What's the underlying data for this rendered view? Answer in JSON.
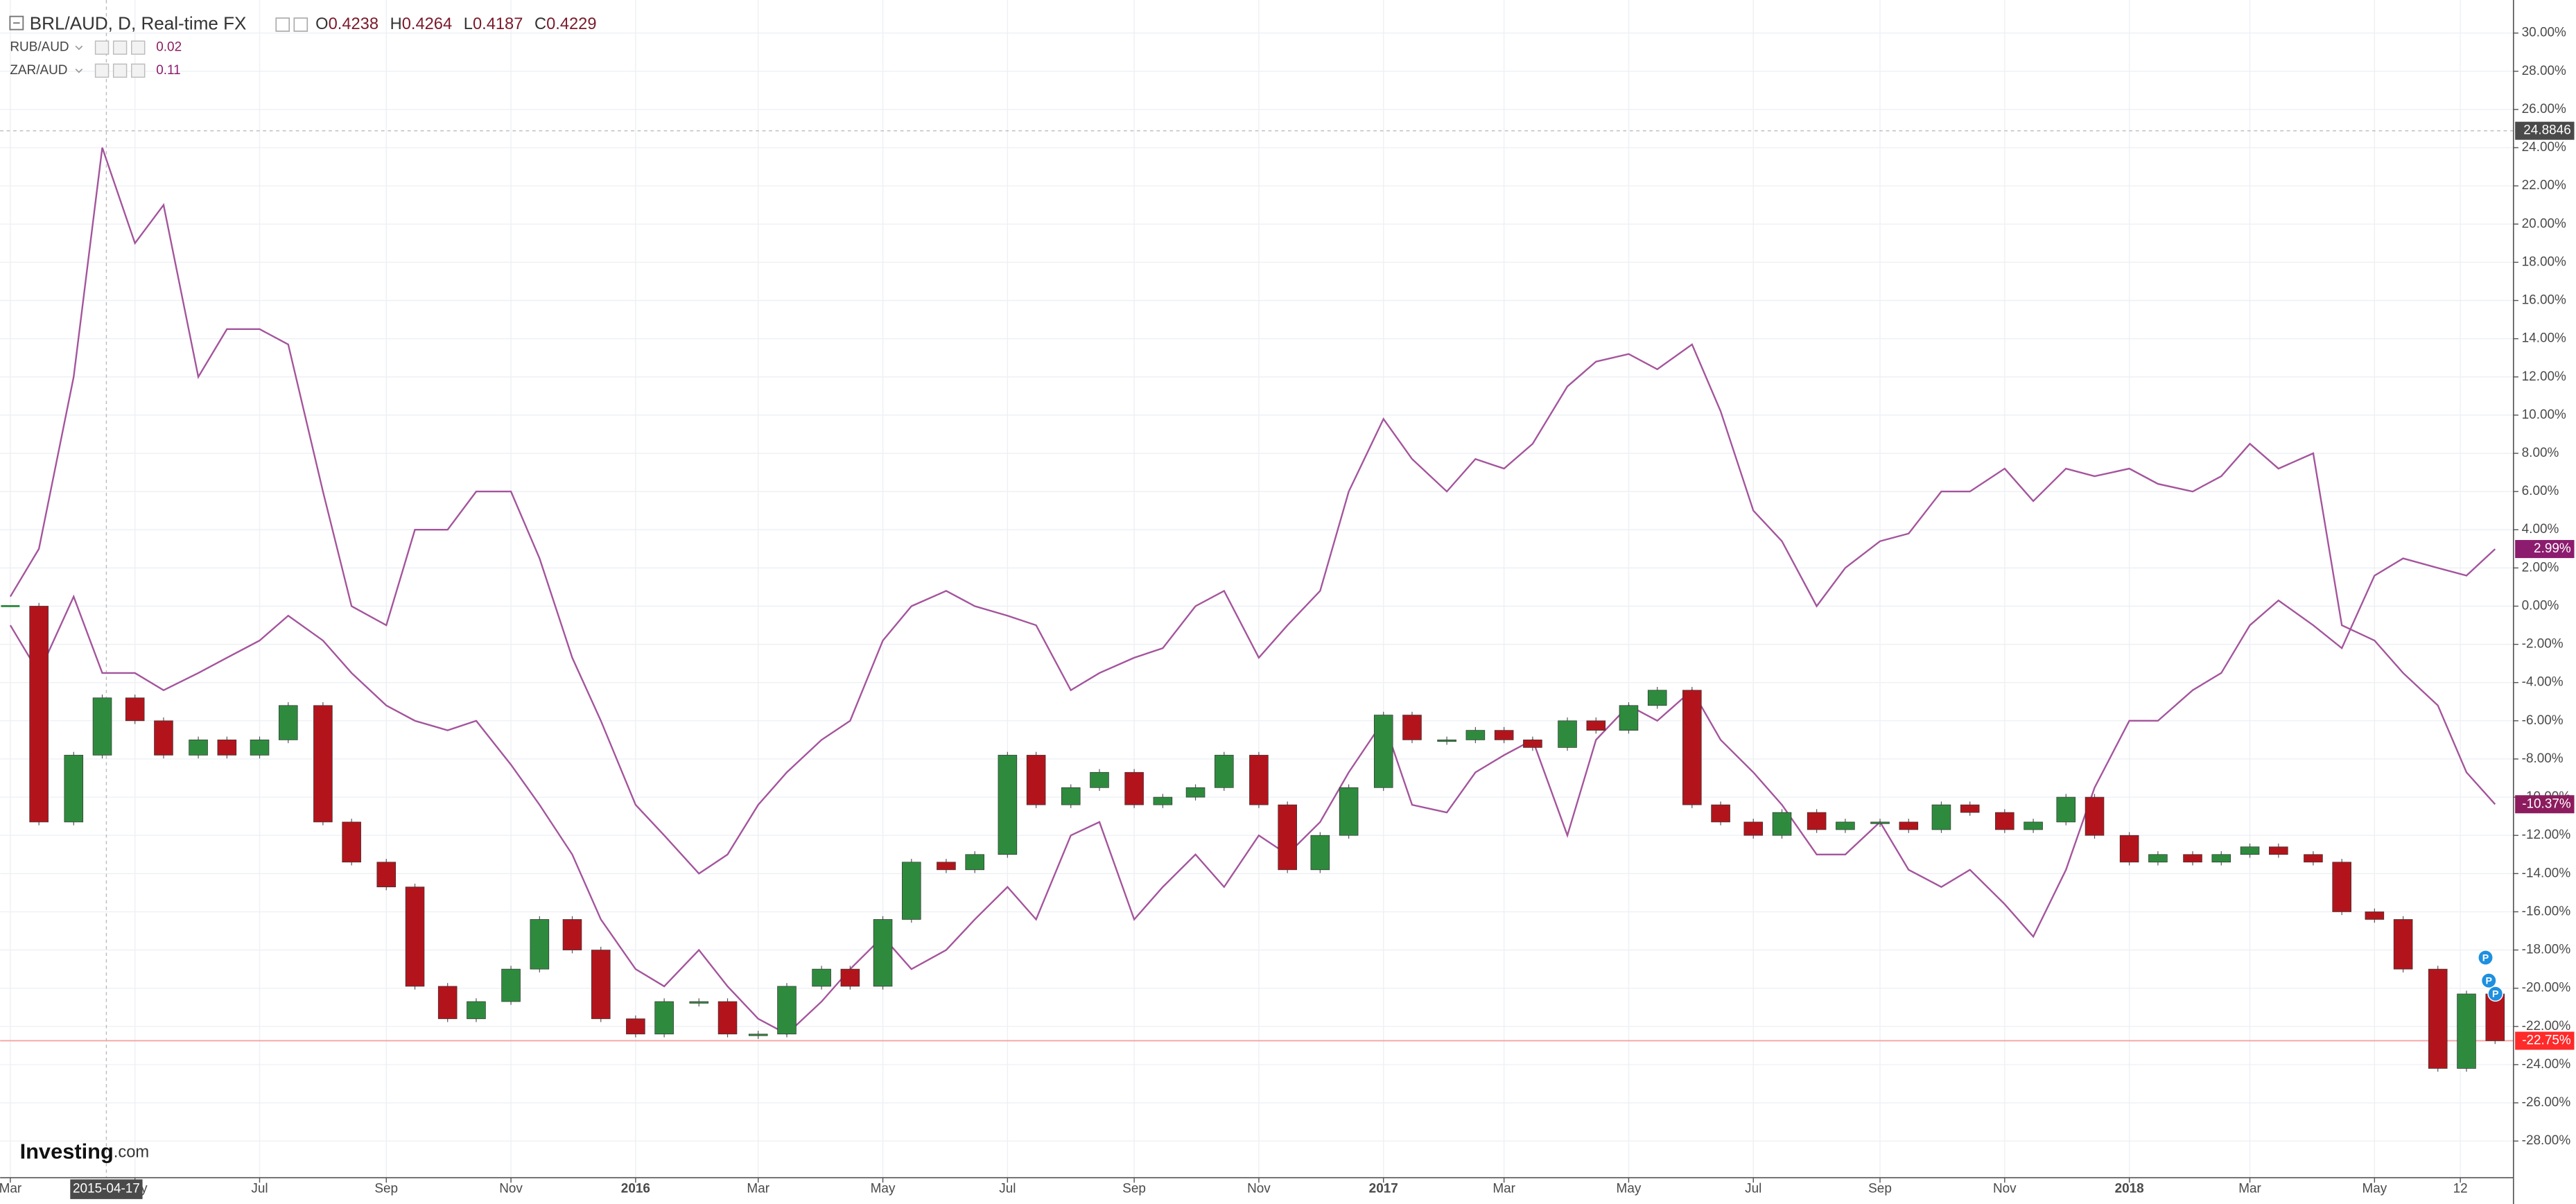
{
  "chart_data": {
    "type": "line",
    "title": "BRL/AUD, D, Real-time FX",
    "ohlc": [
      {
        "label": "O",
        "value": 0.4238
      },
      {
        "label": "H",
        "value": 0.4264
      },
      {
        "label": "L",
        "value": 0.4187
      },
      {
        "label": "C",
        "value": 0.4229
      }
    ],
    "x": [
      "2015-03-01",
      "2015-03-15",
      "2015-04-01",
      "2015-04-15",
      "2015-05-01",
      "2015-05-15",
      "2015-06-01",
      "2015-06-15",
      "2015-07-01",
      "2015-07-15",
      "2015-08-01",
      "2015-08-15",
      "2015-09-01",
      "2015-09-15",
      "2015-10-01",
      "2015-10-15",
      "2015-11-01",
      "2015-11-15",
      "2015-12-01",
      "2015-12-15",
      "2016-01-01",
      "2016-01-15",
      "2016-02-01",
      "2016-02-15",
      "2016-03-01",
      "2016-03-15",
      "2016-04-01",
      "2016-04-15",
      "2016-05-01",
      "2016-05-15",
      "2016-06-01",
      "2016-06-15",
      "2016-07-01",
      "2016-07-15",
      "2016-08-01",
      "2016-08-15",
      "2016-09-01",
      "2016-09-15",
      "2016-10-01",
      "2016-10-15",
      "2016-11-01",
      "2016-11-15",
      "2016-12-01",
      "2016-12-15",
      "2017-01-01",
      "2017-01-15",
      "2017-02-01",
      "2017-02-15",
      "2017-03-01",
      "2017-03-15",
      "2017-04-01",
      "2017-04-15",
      "2017-05-01",
      "2017-05-15",
      "2017-06-01",
      "2017-06-15",
      "2017-07-01",
      "2017-07-15",
      "2017-08-01",
      "2017-08-15",
      "2017-09-01",
      "2017-09-15",
      "2017-10-01",
      "2017-10-15",
      "2017-11-01",
      "2017-11-15",
      "2017-12-01",
      "2017-12-15",
      "2018-01-01",
      "2018-01-15",
      "2018-02-01",
      "2018-02-15",
      "2018-03-01",
      "2018-03-15",
      "2018-04-01",
      "2018-04-15",
      "2018-05-01",
      "2018-05-15",
      "2018-06-01",
      "2018-06-15",
      "2018-06-29"
    ],
    "series": [
      {
        "name": "BRL/AUD",
        "style": "candles",
        "up_color": "#2e8b3e",
        "down_color": "#b3141c",
        "last_color": "#ff2a2a",
        "last_label": "-22.75%",
        "values": [
          0,
          -11.3,
          -7.8,
          -4.8,
          -6,
          -7.8,
          -7,
          -7.8,
          -7,
          -5.2,
          -11.3,
          -13.4,
          -14.7,
          -19.9,
          -21.6,
          -20.7,
          -19,
          -16.4,
          -18,
          -21.6,
          -22.4,
          -20.7,
          -20.7,
          -22.4,
          -22.4,
          -19.9,
          -19,
          -19.9,
          -16.4,
          -13.4,
          -13.8,
          -13,
          -7.8,
          -10.4,
          -9.5,
          -8.7,
          -10.4,
          -10,
          -9.5,
          -7.8,
          -10.4,
          -13.8,
          -12,
          -9.5,
          -5.7,
          -7,
          -7,
          -6.5,
          -7,
          -7.4,
          -6,
          -6.5,
          -5.2,
          -4.4,
          -10.4,
          -11.3,
          -12,
          -10.8,
          -11.7,
          -11.3,
          -11.3,
          -11.7,
          -10.4,
          -10.8,
          -11.7,
          -11.3,
          -10,
          -12,
          -13.4,
          -13,
          -13.4,
          -13,
          -12.6,
          -13,
          -13.4,
          -16,
          -16.4,
          -19,
          -24.2,
          -20.3,
          -22.75
        ]
      },
      {
        "name": "RUB/AUD",
        "style": "line",
        "color": "#a4549c",
        "last_color": "#8c1c5e",
        "last_price": 0.02,
        "last_label": "-10.37%",
        "values": [
          0.5,
          3,
          12,
          24,
          19,
          21,
          12,
          14.5,
          14.5,
          13.7,
          6,
          0,
          -1,
          4,
          4,
          6,
          6,
          2.5,
          -2.7,
          -6,
          -10.4,
          -12,
          -14,
          -13,
          -10.4,
          -8.7,
          -7,
          -6,
          -1.8,
          0,
          0.8,
          0,
          -0.5,
          -1,
          -4.4,
          -3.5,
          -2.7,
          -2.2,
          0,
          0.8,
          -2.7,
          -1,
          0.8,
          6,
          9.8,
          7.7,
          6,
          7.7,
          7.2,
          8.5,
          11.5,
          12.8,
          13.2,
          12.4,
          13.7,
          10.2,
          5,
          3.4,
          0,
          2,
          3.4,
          3.8,
          6,
          6,
          7.2,
          5.5,
          7.2,
          6.8,
          7.2,
          6.4,
          6,
          6.8,
          8.5,
          7.2,
          8,
          -1,
          -1.8,
          -3.5,
          -5.2,
          -8.7,
          -10.37
        ]
      },
      {
        "name": "ZAR/AUD",
        "style": "line",
        "color": "#a4549c",
        "last_color": "#8c1c6e",
        "last_price": 0.11,
        "last_label": "2.99%",
        "values": [
          -1,
          -3.5,
          0.5,
          -3.5,
          -3.5,
          -4.4,
          -3.5,
          -2.7,
          -1.8,
          -0.5,
          -1.8,
          -3.5,
          -5.2,
          -6,
          -6.5,
          -6,
          -8.3,
          -10.4,
          -13,
          -16.4,
          -19,
          -19.9,
          -18,
          -19.9,
          -21.6,
          -22.4,
          -20.7,
          -19,
          -17.3,
          -19,
          -18,
          -16.4,
          -14.7,
          -16.4,
          -12,
          -11.3,
          -16.4,
          -14.7,
          -13,
          -14.7,
          -12,
          -13,
          -11.3,
          -8.7,
          -6,
          -10.4,
          -10.8,
          -8.7,
          -7.8,
          -7,
          -12,
          -7,
          -5.2,
          -6,
          -4.4,
          -7,
          -8.7,
          -10.4,
          -13,
          -13,
          -11.3,
          -13.8,
          -14.7,
          -13.8,
          -15.6,
          -17.3,
          -13.8,
          -9.5,
          -6,
          -6,
          -4.4,
          -3.5,
          -1,
          0.3,
          -1,
          -2.2,
          1.6,
          2.5,
          2,
          1.6,
          2.99
        ]
      }
    ],
    "xlim": [
      "2015-02-24",
      "2018-07-08"
    ],
    "xticks": [
      {
        "value": "2015-03-01",
        "label": "Mar"
      },
      {
        "value": "2015-05-01",
        "label": "May"
      },
      {
        "value": "2015-07-01",
        "label": "Jul"
      },
      {
        "value": "2015-09-01",
        "label": "Sep"
      },
      {
        "value": "2015-11-01",
        "label": "Nov"
      },
      {
        "value": "2016-01-01",
        "label": "2016"
      },
      {
        "value": "2016-03-01",
        "label": "Mar"
      },
      {
        "value": "2016-05-01",
        "label": "May"
      },
      {
        "value": "2016-07-01",
        "label": "Jul"
      },
      {
        "value": "2016-09-01",
        "label": "Sep"
      },
      {
        "value": "2016-11-01",
        "label": "Nov"
      },
      {
        "value": "2017-01-01",
        "label": "2017"
      },
      {
        "value": "2017-03-01",
        "label": "Mar"
      },
      {
        "value": "2017-05-01",
        "label": "May"
      },
      {
        "value": "2017-07-01",
        "label": "Jul"
      },
      {
        "value": "2017-09-01",
        "label": "Sep"
      },
      {
        "value": "2017-11-01",
        "label": "Nov"
      },
      {
        "value": "2018-01-01",
        "label": "2018"
      },
      {
        "value": "2018-03-01",
        "label": "Mar"
      },
      {
        "value": "2018-05-01",
        "label": "May"
      },
      {
        "value": "2018-06-12",
        "label": "12"
      }
    ],
    "ylim": [
      -29.92,
      31.73
    ],
    "yticks": [
      {
        "value": -28,
        "label": "-28.00%"
      },
      {
        "value": -26,
        "label": "-26.00%"
      },
      {
        "value": -24,
        "label": "-24.00%"
      },
      {
        "value": -22,
        "label": "-22.00%"
      },
      {
        "value": -20,
        "label": "-20.00%"
      },
      {
        "value": -18,
        "label": "-18.00%"
      },
      {
        "value": -16,
        "label": "-16.00%"
      },
      {
        "value": -14,
        "label": "-14.00%"
      },
      {
        "value": -12,
        "label": "-12.00%"
      },
      {
        "value": -10,
        "label": "-10.00%"
      },
      {
        "value": -8,
        "label": "-8.00%"
      },
      {
        "value": -6,
        "label": "-6.00%"
      },
      {
        "value": -4,
        "label": "-4.00%"
      },
      {
        "value": -2,
        "label": "-2.00%"
      },
      {
        "value": 0,
        "label": "0.00%"
      },
      {
        "value": 2,
        "label": "2.00%"
      },
      {
        "value": 4,
        "label": "4.00%"
      },
      {
        "value": 6,
        "label": "6.00%"
      },
      {
        "value": 8,
        "label": "8.00%"
      },
      {
        "value": 10,
        "label": "10.00%"
      },
      {
        "value": 12,
        "label": "12.00%"
      },
      {
        "value": 14,
        "label": "14.00%"
      },
      {
        "value": 16,
        "label": "16.00%"
      },
      {
        "value": 18,
        "label": "18.00%"
      },
      {
        "value": 20,
        "label": "20.00%"
      },
      {
        "value": 22,
        "label": "22.00%"
      },
      {
        "value": 24,
        "label": "24.00%"
      },
      {
        "value": 26,
        "label": "26.00%"
      },
      {
        "value": 28,
        "label": "28.00%"
      },
      {
        "value": 30,
        "label": "30.00%"
      }
    ],
    "grid": true,
    "crosshair": {
      "x": "2015-04-17",
      "y": 24.8846
    },
    "event_markers": [
      "P",
      "P",
      "P"
    ],
    "watermark": [
      "Investing",
      ".com"
    ]
  }
}
